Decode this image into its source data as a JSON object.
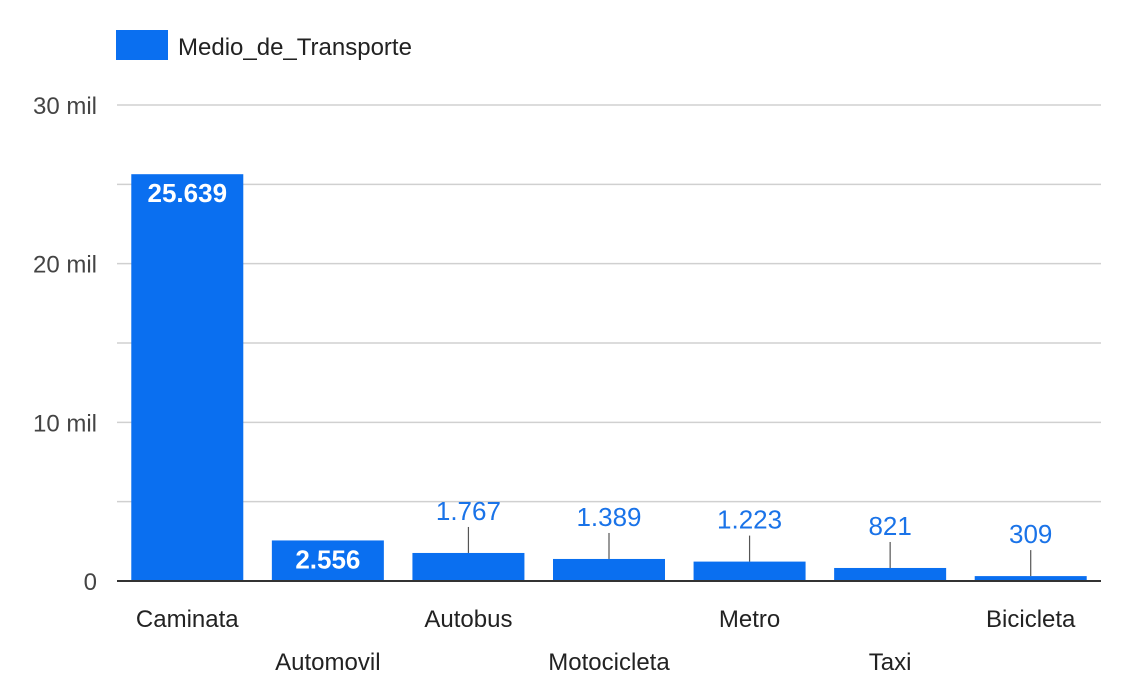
{
  "chart_data": {
    "type": "bar",
    "legend": {
      "label": "Medio_de_Transporte",
      "position": "top-left"
    },
    "series": [
      {
        "name": "Medio_de_Transporte",
        "color": "#0a6ff0",
        "values": [
          25639,
          2556,
          1767,
          1389,
          1223,
          821,
          309
        ]
      }
    ],
    "categories": [
      "Caminata",
      "Automovil",
      "Autobus",
      "Motocicleta",
      "Metro",
      "Taxi",
      "Bicicleta"
    ],
    "data_labels": [
      "25.639",
      "2.556",
      "1.767",
      "1.389",
      "1.223",
      "821",
      "309"
    ],
    "yticks": [
      0,
      10000,
      20000,
      30000
    ],
    "ytick_labels": [
      "0",
      "10 mil",
      "20 mil",
      "30 mil"
    ],
    "ylim": [
      0,
      30000
    ],
    "grid": true,
    "grid_step": 5000,
    "colors": {
      "bar": "#0a6ff0",
      "grid": "#d0d0d0",
      "axis": "#333333",
      "outside_label": "#1a73e8"
    }
  }
}
